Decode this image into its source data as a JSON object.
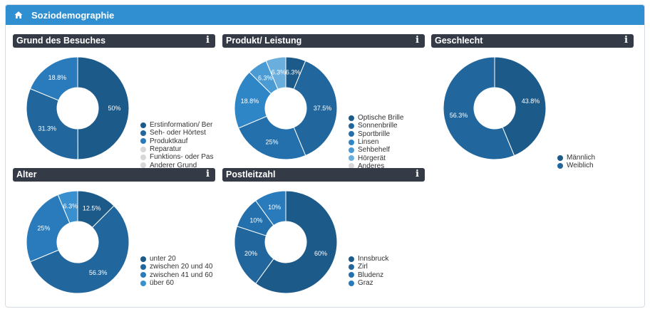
{
  "page": {
    "title": "Soziodemographie"
  },
  "widgets": [
    {
      "id": "grund",
      "title": "Grund des Besuches",
      "info": "i",
      "chart_data": {
        "type": "pie",
        "title": "Grund des Besuches",
        "categories": [
          "Erstinformation/ Ber",
          "Seh- oder Hörtest",
          "Produktkauf",
          "Reparatur",
          "Funktions- oder Pas",
          "Anderer Grund"
        ],
        "values": [
          50,
          31.3,
          18.8,
          0,
          0,
          0
        ],
        "labels": [
          "50%",
          "31.3%",
          "18.8%",
          "",
          "",
          ""
        ],
        "colors": [
          "#1c5a89",
          "#21679d",
          "#2a7bbb",
          "#d8d8d8",
          "#d8d8d8",
          "#d8d8d8"
        ],
        "legend": "right"
      }
    },
    {
      "id": "produkt",
      "title": "Produkt/ Leistung",
      "info": "i",
      "chart_data": {
        "type": "pie",
        "title": "Produkt/ Leistung",
        "categories": [
          "Optische Brille",
          "Sonnenbrille",
          "Sportbrille",
          "Linsen",
          "Sehbehelf",
          "Hörgerät",
          "Anderes"
        ],
        "values": [
          6.3,
          37.5,
          25,
          18.8,
          6.3,
          6.3,
          0
        ],
        "labels": [
          "6.3%",
          "37.5%",
          "25%",
          "18.8%",
          "6.3%",
          "6.3%",
          ""
        ],
        "colors": [
          "#1c5a89",
          "#21679d",
          "#2470ad",
          "#2f86c7",
          "#4a9ad3",
          "#6aaedd",
          "#d8d8d8"
        ],
        "legend": "right"
      }
    },
    {
      "id": "geschlecht",
      "title": "Geschlecht",
      "info": "i",
      "chart_data": {
        "type": "pie",
        "title": "Geschlecht",
        "categories": [
          "Männlich",
          "Weiblich"
        ],
        "values": [
          43.8,
          56.3
        ],
        "labels": [
          "43.8%",
          "56.3%"
        ],
        "colors": [
          "#1c5a89",
          "#21679d"
        ],
        "legend": "right"
      }
    },
    {
      "id": "alter",
      "title": "Alter",
      "info": "i",
      "chart_data": {
        "type": "pie",
        "title": "Alter",
        "categories": [
          "unter 20",
          "zwischen 20 und 40",
          "zwischen 41 und 60",
          "über 60"
        ],
        "values": [
          12.5,
          56.3,
          25,
          6.3
        ],
        "labels": [
          "12.5%",
          "56.3%",
          "25%",
          "6.3%"
        ],
        "colors": [
          "#1c5a89",
          "#21679d",
          "#2a7bbb",
          "#3a90cf"
        ],
        "legend": "right"
      }
    },
    {
      "id": "plz",
      "title": "Postleitzahl",
      "info": "i",
      "chart_data": {
        "type": "pie",
        "title": "Postleitzahl",
        "categories": [
          "Innsbruck",
          "Zirl",
          "Bludenz",
          "Graz"
        ],
        "values": [
          60,
          20,
          10,
          10
        ],
        "labels": [
          "60%",
          "20%",
          "10%",
          "10%"
        ],
        "colors": [
          "#1c5a89",
          "#21679d",
          "#2470ad",
          "#2a7bbb"
        ],
        "legend": "right"
      }
    }
  ]
}
